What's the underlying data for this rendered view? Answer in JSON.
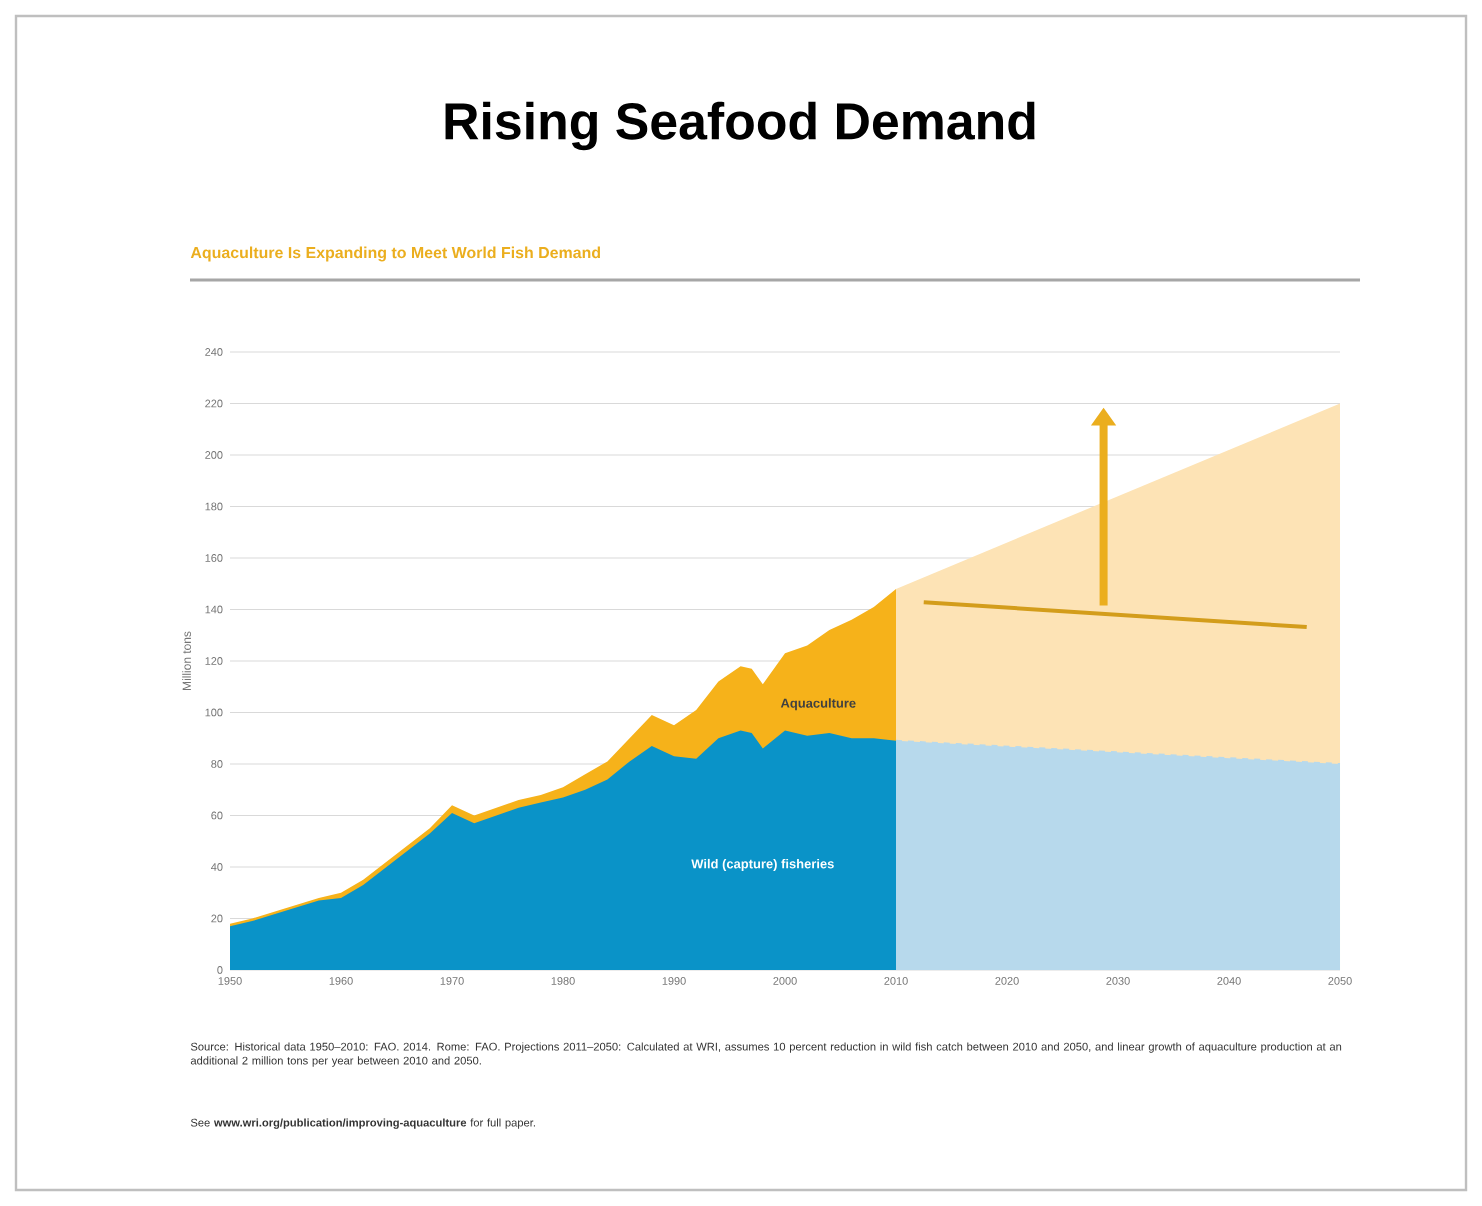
{
  "chart_data": {
    "type": "area",
    "title": "Rising Seafood Demand",
    "subtitle": "Aquaculture Is Expanding to Meet World Fish Demand",
    "ylabel": "Million tons",
    "xlim": [
      1950,
      2050
    ],
    "ylim": [
      0,
      240
    ],
    "xticks": [
      1950,
      1960,
      1970,
      1980,
      1990,
      2000,
      2010,
      2020,
      2030,
      2040,
      2050
    ],
    "yticks": [
      0,
      20,
      40,
      60,
      80,
      100,
      120,
      140,
      160,
      180,
      200,
      220,
      240
    ],
    "grid": "y",
    "series": [
      {
        "color": "#f6b21a",
        "x": [
          1950,
          1952,
          1955,
          1958,
          1960,
          1962,
          1965,
          1968,
          1970,
          1972,
          1974,
          1976,
          1978,
          1980,
          1982,
          1984,
          1986,
          1988,
          1990,
          1992,
          1994,
          1996,
          1997,
          1998,
          2000,
          2002,
          2004,
          2006,
          2008,
          2010
        ],
        "values": [
          18,
          20,
          24,
          28,
          30,
          35,
          45,
          55,
          64,
          60,
          63,
          66,
          68,
          71,
          76,
          81,
          90,
          99,
          95,
          101,
          112,
          118,
          117,
          111,
          123,
          126,
          132,
          136,
          141,
          148
        ]
      },
      {
        "color": "#0a93c8",
        "x": [
          1950,
          1952,
          1955,
          1958,
          1960,
          1962,
          1965,
          1968,
          1970,
          1972,
          1974,
          1976,
          1978,
          1980,
          1982,
          1984,
          1986,
          1988,
          1990,
          1992,
          1994,
          1996,
          1997,
          1998,
          2000,
          2002,
          2004,
          2006,
          2008,
          2010
        ],
        "values": [
          17,
          19,
          23,
          27,
          28,
          33,
          43,
          53,
          61,
          57,
          60,
          63,
          65,
          67,
          70,
          74,
          81,
          87,
          83,
          82,
          90,
          93,
          92,
          86,
          93,
          91,
          92,
          90,
          90,
          89
        ]
      },
      {
        "color": "#fde3b5",
        "x": [
          2010,
          2050
        ],
        "values": [
          148,
          220
        ]
      },
      {
        "color": "#b7d9ec",
        "x": [
          2010,
          2050
        ],
        "values": [
          89,
          80
        ],
        "line_style": "dashed"
      }
    ],
    "annotations": [
      "Aquaculture",
      "Wild (capture) fisheries",
      "Source: Historical data 1950–2010: FAO. 2014. Rome: FAO. Projections 2011–2050: Calculated at WRI, assumes 10 percent reduction in wild fish catch between 2010 and 2050, and linear growth of aquaculture production at an additional 2 million tons per year between 2010 and 2050.",
      "See **www.wri.org/publication/improving-aquaculture** for full paper."
    ]
  }
}
